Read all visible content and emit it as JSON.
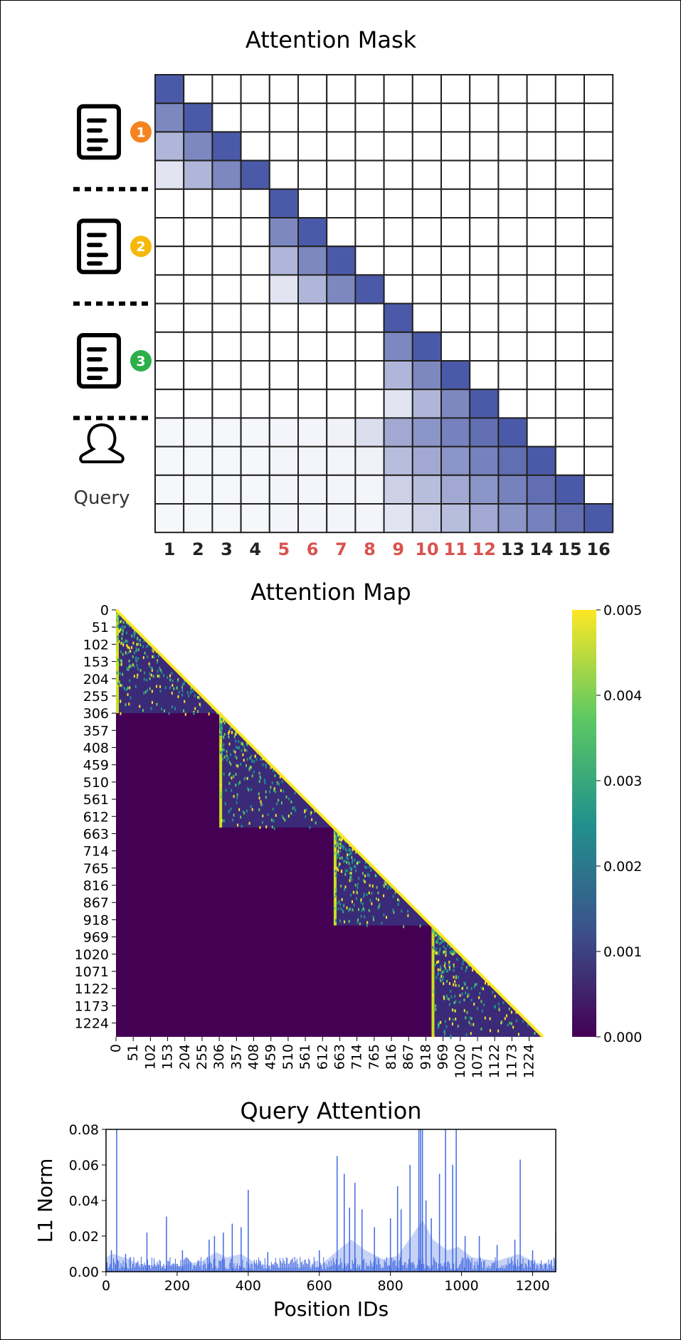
{
  "mask": {
    "title": "Attention Mask",
    "n": 16,
    "column_labels": [
      "1",
      "2",
      "3",
      "4",
      "5",
      "6",
      "7",
      "8",
      "9",
      "10",
      "11",
      "12",
      "13",
      "14",
      "15",
      "16"
    ],
    "highlighted_labels": [
      "5",
      "6",
      "7",
      "8",
      "9",
      "10",
      "11",
      "12"
    ],
    "documents": [
      {
        "number": "1",
        "rows": [
          1,
          4
        ],
        "color": "#f5841f"
      },
      {
        "number": "2",
        "rows": [
          5,
          8
        ],
        "color": "#f5b90c"
      },
      {
        "number": "3",
        "rows": [
          9,
          12
        ],
        "color": "#2daf4a"
      }
    ],
    "query_label": "Query",
    "query_rows": [
      13,
      16
    ],
    "colors": {
      "cell_max": "#4b5aa8",
      "label_highlight": "#d9534f",
      "label": "#222222"
    }
  },
  "attention_map": {
    "title": "Attention Map",
    "tick_labels": [
      "0",
      "51",
      "102",
      "153",
      "204",
      "255",
      "306",
      "357",
      "408",
      "459",
      "510",
      "561",
      "612",
      "663",
      "714",
      "765",
      "816",
      "867",
      "918",
      "969",
      "1020",
      "1071",
      "1122",
      "1173",
      "1224"
    ],
    "token_count": 1265,
    "block_boundaries": [
      0,
      306,
      645,
      935,
      1265
    ],
    "colorbar": {
      "min": 0,
      "max": 0.005,
      "tick_labels": [
        "0.005",
        "0.004",
        "0.003",
        "0.002",
        "0.001",
        "0.000"
      ],
      "colormap": "viridis"
    }
  },
  "chart_data": {
    "type": "bar",
    "title": "Query Attention",
    "xlabel": "Position IDs",
    "ylabel": "L1 Norm",
    "xlim": [
      0,
      1265
    ],
    "ylim": [
      0,
      0.08
    ],
    "xticks": [
      "0",
      "200",
      "400",
      "600",
      "800",
      "1000",
      "1200"
    ],
    "yticks": [
      "0.00",
      "0.02",
      "0.04",
      "0.06",
      "0.08"
    ],
    "baseline": 0.004,
    "spikes": [
      {
        "x": 15,
        "y": 0.012
      },
      {
        "x": 30,
        "y": 0.08
      },
      {
        "x": 55,
        "y": 0.01
      },
      {
        "x": 115,
        "y": 0.022
      },
      {
        "x": 170,
        "y": 0.031
      },
      {
        "x": 215,
        "y": 0.012
      },
      {
        "x": 290,
        "y": 0.018
      },
      {
        "x": 305,
        "y": 0.02
      },
      {
        "x": 330,
        "y": 0.022
      },
      {
        "x": 355,
        "y": 0.027
      },
      {
        "x": 380,
        "y": 0.025
      },
      {
        "x": 400,
        "y": 0.046
      },
      {
        "x": 455,
        "y": 0.011
      },
      {
        "x": 600,
        "y": 0.012
      },
      {
        "x": 650,
        "y": 0.065
      },
      {
        "x": 670,
        "y": 0.055
      },
      {
        "x": 685,
        "y": 0.036
      },
      {
        "x": 700,
        "y": 0.05
      },
      {
        "x": 720,
        "y": 0.035
      },
      {
        "x": 755,
        "y": 0.025
      },
      {
        "x": 800,
        "y": 0.03
      },
      {
        "x": 820,
        "y": 0.048
      },
      {
        "x": 830,
        "y": 0.035
      },
      {
        "x": 855,
        "y": 0.06
      },
      {
        "x": 880,
        "y": 0.08
      },
      {
        "x": 885,
        "y": 0.08
      },
      {
        "x": 890,
        "y": 0.08
      },
      {
        "x": 900,
        "y": 0.04
      },
      {
        "x": 915,
        "y": 0.03
      },
      {
        "x": 938,
        "y": 0.055
      },
      {
        "x": 955,
        "y": 0.08
      },
      {
        "x": 975,
        "y": 0.06
      },
      {
        "x": 985,
        "y": 0.08
      },
      {
        "x": 1010,
        "y": 0.02
      },
      {
        "x": 1050,
        "y": 0.02
      },
      {
        "x": 1100,
        "y": 0.015
      },
      {
        "x": 1150,
        "y": 0.018
      },
      {
        "x": 1165,
        "y": 0.063
      },
      {
        "x": 1200,
        "y": 0.012
      },
      {
        "x": 1265,
        "y": 0.022
      }
    ],
    "smoothed": [
      {
        "x": 0,
        "y": 0.008
      },
      {
        "x": 20,
        "y": 0.01
      },
      {
        "x": 50,
        "y": 0.008
      },
      {
        "x": 100,
        "y": 0.004
      },
      {
        "x": 200,
        "y": 0.003
      },
      {
        "x": 270,
        "y": 0.006
      },
      {
        "x": 310,
        "y": 0.011
      },
      {
        "x": 340,
        "y": 0.008
      },
      {
        "x": 380,
        "y": 0.01
      },
      {
        "x": 420,
        "y": 0.005
      },
      {
        "x": 500,
        "y": 0.002
      },
      {
        "x": 600,
        "y": 0.003
      },
      {
        "x": 640,
        "y": 0.01
      },
      {
        "x": 690,
        "y": 0.018
      },
      {
        "x": 730,
        "y": 0.012
      },
      {
        "x": 780,
        "y": 0.007
      },
      {
        "x": 820,
        "y": 0.009
      },
      {
        "x": 860,
        "y": 0.02
      },
      {
        "x": 890,
        "y": 0.029
      },
      {
        "x": 920,
        "y": 0.018
      },
      {
        "x": 960,
        "y": 0.012
      },
      {
        "x": 990,
        "y": 0.014
      },
      {
        "x": 1030,
        "y": 0.008
      },
      {
        "x": 1100,
        "y": 0.006
      },
      {
        "x": 1160,
        "y": 0.01
      },
      {
        "x": 1210,
        "y": 0.005
      },
      {
        "x": 1265,
        "y": 0.003
      }
    ],
    "color": "#4169e1"
  }
}
